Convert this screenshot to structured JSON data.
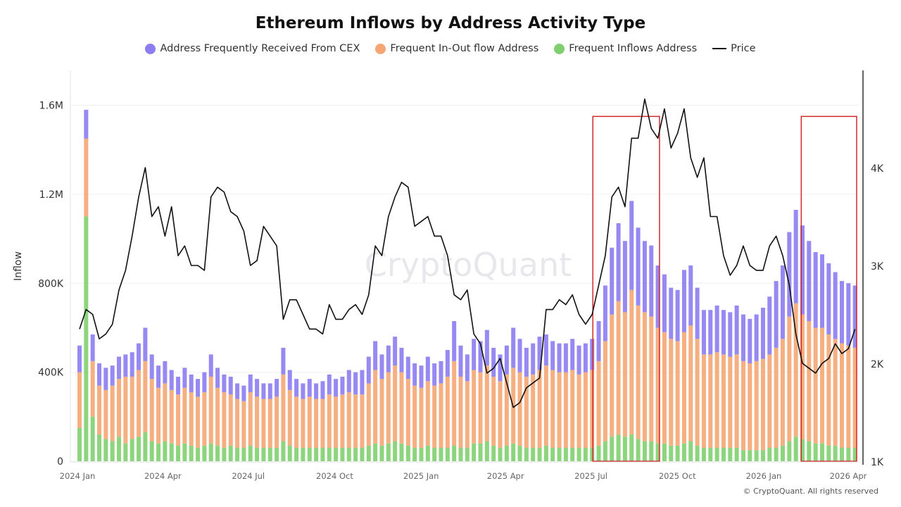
{
  "chart_data": {
    "type": "bar",
    "title": "Ethereum Inflows by Address Activity Type",
    "ylabel": "Inflow",
    "y2label": "",
    "ylim": [
      0,
      1760000
    ],
    "y2lim": [
      1000,
      5000
    ],
    "y_ticks": [
      {
        "v": 0,
        "label": "0"
      },
      {
        "v": 400000,
        "label": "400K"
      },
      {
        "v": 800000,
        "label": "800K"
      },
      {
        "v": 1200000,
        "label": "1.2M"
      },
      {
        "v": 1600000,
        "label": "1.6M"
      }
    ],
    "y2_ticks": [
      {
        "v": 1000,
        "label": "1K"
      },
      {
        "v": 2000,
        "label": "2K"
      },
      {
        "v": 3000,
        "label": "3K"
      },
      {
        "v": 4000,
        "label": "4K"
      }
    ],
    "x_ticks": [
      {
        "v": "2024-01-01",
        "label": "2024 Jan"
      },
      {
        "v": "2024-04-01",
        "label": "2024 Apr"
      },
      {
        "v": "2024-07-01",
        "label": "2024 Jul"
      },
      {
        "v": "2024-10-01",
        "label": "2024 Oct"
      },
      {
        "v": "2025-01-01",
        "label": "2025 Jan"
      },
      {
        "v": "2025-04-01",
        "label": "2025 Apr"
      },
      {
        "v": "2025-07-01",
        "label": "2025 Jul"
      },
      {
        "v": "2025-10-01",
        "label": "2025 Oct"
      },
      {
        "v": "2026-01-01",
        "label": "2026 Jan"
      },
      {
        "v": "2026-04-01",
        "label": "2026 Apr"
      }
    ],
    "stacked": true,
    "grid": "horizontal, faint",
    "legend_placement": "top-center",
    "x": [
      "2024-01-01",
      "2024-01-08",
      "2024-01-15",
      "2024-01-22",
      "2024-01-29",
      "2024-02-05",
      "2024-02-12",
      "2024-02-19",
      "2024-02-26",
      "2024-03-04",
      "2024-03-11",
      "2024-03-18",
      "2024-03-25",
      "2024-04-01",
      "2024-04-08",
      "2024-04-15",
      "2024-04-22",
      "2024-04-29",
      "2024-05-06",
      "2024-05-13",
      "2024-05-20",
      "2024-05-27",
      "2024-06-03",
      "2024-06-10",
      "2024-06-17",
      "2024-06-24",
      "2024-07-01",
      "2024-07-08",
      "2024-07-15",
      "2024-07-22",
      "2024-07-29",
      "2024-08-05",
      "2024-08-12",
      "2024-08-19",
      "2024-08-26",
      "2024-09-02",
      "2024-09-09",
      "2024-09-16",
      "2024-09-23",
      "2024-09-30",
      "2024-10-07",
      "2024-10-14",
      "2024-10-21",
      "2024-10-28",
      "2024-11-04",
      "2024-11-11",
      "2024-11-18",
      "2024-11-25",
      "2024-12-02",
      "2024-12-09",
      "2024-12-16",
      "2024-12-23",
      "2024-12-30",
      "2025-01-06",
      "2025-01-13",
      "2025-01-20",
      "2025-01-27",
      "2025-02-03",
      "2025-02-10",
      "2025-02-17",
      "2025-02-24",
      "2025-03-03",
      "2025-03-10",
      "2025-03-17",
      "2025-03-24",
      "2025-03-31",
      "2025-04-07",
      "2025-04-14",
      "2025-04-21",
      "2025-04-28",
      "2025-05-05",
      "2025-05-12",
      "2025-05-19",
      "2025-05-26",
      "2025-06-02",
      "2025-06-09",
      "2025-06-16",
      "2025-06-23",
      "2025-06-30",
      "2025-07-07",
      "2025-07-14",
      "2025-07-21",
      "2025-07-28",
      "2025-08-04",
      "2025-08-11",
      "2025-08-18",
      "2025-08-25",
      "2025-09-01",
      "2025-09-08",
      "2025-09-15",
      "2025-09-22",
      "2025-09-29",
      "2025-10-06",
      "2025-10-13",
      "2025-10-20",
      "2025-10-27",
      "2025-11-03",
      "2025-11-10",
      "2025-11-17",
      "2025-11-24",
      "2025-12-01",
      "2025-12-08",
      "2025-12-15",
      "2025-12-22",
      "2025-12-29",
      "2026-01-05",
      "2026-01-12",
      "2026-01-19",
      "2026-01-26",
      "2026-02-02",
      "2026-02-09",
      "2026-02-16",
      "2026-02-23",
      "2026-03-02",
      "2026-03-09",
      "2026-03-16",
      "2026-03-23",
      "2026-03-30",
      "2026-04-06"
    ],
    "series": [
      {
        "name": "Frequent Inflows Address",
        "color": "#7fcf6f",
        "axis": "left",
        "values": [
          150000,
          1100000,
          200000,
          120000,
          100000,
          90000,
          110000,
          80000,
          100000,
          110000,
          130000,
          90000,
          80000,
          90000,
          80000,
          70000,
          80000,
          70000,
          60000,
          70000,
          80000,
          70000,
          60000,
          70000,
          60000,
          60000,
          70000,
          60000,
          60000,
          60000,
          60000,
          90000,
          70000,
          60000,
          60000,
          60000,
          60000,
          60000,
          60000,
          60000,
          60000,
          60000,
          60000,
          60000,
          70000,
          80000,
          70000,
          80000,
          90000,
          80000,
          70000,
          60000,
          60000,
          70000,
          60000,
          60000,
          60000,
          70000,
          60000,
          60000,
          80000,
          80000,
          90000,
          70000,
          60000,
          70000,
          80000,
          70000,
          60000,
          60000,
          60000,
          70000,
          60000,
          60000,
          60000,
          60000,
          60000,
          60000,
          60000,
          70000,
          90000,
          110000,
          120000,
          110000,
          120000,
          100000,
          90000,
          90000,
          80000,
          80000,
          70000,
          70000,
          80000,
          90000,
          70000,
          60000,
          60000,
          60000,
          60000,
          60000,
          60000,
          50000,
          50000,
          50000,
          50000,
          60000,
          60000,
          70000,
          90000,
          110000,
          100000,
          90000,
          80000,
          80000,
          70000,
          70000,
          60000,
          60000,
          60000
        ]
      },
      {
        "name": "Frequent In-Out flow Address",
        "color": "#f5a672",
        "axis": "left",
        "values": [
          250000,
          350000,
          250000,
          220000,
          220000,
          250000,
          260000,
          300000,
          280000,
          300000,
          320000,
          280000,
          250000,
          260000,
          240000,
          230000,
          250000,
          240000,
          230000,
          240000,
          300000,
          260000,
          250000,
          230000,
          220000,
          210000,
          240000,
          230000,
          220000,
          220000,
          230000,
          300000,
          250000,
          230000,
          220000,
          230000,
          220000,
          220000,
          240000,
          230000,
          240000,
          250000,
          240000,
          240000,
          280000,
          330000,
          300000,
          320000,
          340000,
          320000,
          300000,
          280000,
          270000,
          290000,
          280000,
          290000,
          320000,
          380000,
          320000,
          300000,
          330000,
          320000,
          340000,
          310000,
          300000,
          320000,
          340000,
          330000,
          320000,
          330000,
          350000,
          360000,
          350000,
          340000,
          340000,
          350000,
          330000,
          340000,
          350000,
          380000,
          450000,
          550000,
          600000,
          560000,
          650000,
          600000,
          580000,
          560000,
          520000,
          500000,
          480000,
          470000,
          500000,
          520000,
          480000,
          420000,
          420000,
          430000,
          420000,
          410000,
          420000,
          400000,
          390000,
          400000,
          410000,
          420000,
          450000,
          480000,
          560000,
          600000,
          560000,
          540000,
          520000,
          520000,
          500000,
          480000,
          470000,
          460000,
          450000
        ]
      },
      {
        "name": "Address Frequently Received From CEX",
        "color": "#8b7cf0",
        "axis": "left",
        "values": [
          120000,
          130000,
          120000,
          100000,
          100000,
          90000,
          100000,
          100000,
          110000,
          120000,
          150000,
          110000,
          100000,
          100000,
          90000,
          80000,
          90000,
          80000,
          80000,
          90000,
          100000,
          90000,
          80000,
          80000,
          70000,
          70000,
          80000,
          80000,
          70000,
          70000,
          80000,
          120000,
          90000,
          80000,
          70000,
          80000,
          70000,
          80000,
          90000,
          80000,
          80000,
          100000,
          100000,
          110000,
          120000,
          130000,
          110000,
          120000,
          130000,
          110000,
          100000,
          100000,
          100000,
          110000,
          100000,
          100000,
          120000,
          180000,
          140000,
          120000,
          140000,
          140000,
          160000,
          130000,
          120000,
          130000,
          180000,
          150000,
          130000,
          140000,
          150000,
          140000,
          130000,
          130000,
          130000,
          140000,
          130000,
          130000,
          140000,
          180000,
          250000,
          300000,
          350000,
          320000,
          400000,
          350000,
          320000,
          320000,
          280000,
          260000,
          230000,
          230000,
          280000,
          270000,
          230000,
          200000,
          200000,
          210000,
          200000,
          200000,
          220000,
          210000,
          200000,
          210000,
          230000,
          260000,
          300000,
          330000,
          380000,
          420000,
          400000,
          360000,
          340000,
          330000,
          320000,
          300000,
          280000,
          280000,
          280000
        ]
      },
      {
        "name": "Price",
        "color": "#111111",
        "axis": "right",
        "type": "line",
        "values": [
          2350,
          2550,
          2500,
          2250,
          2300,
          2400,
          2750,
          2950,
          3300,
          3700,
          4000,
          3500,
          3600,
          3300,
          3600,
          3100,
          3200,
          3000,
          3000,
          2950,
          3700,
          3800,
          3750,
          3550,
          3500,
          3350,
          3000,
          3050,
          3400,
          3300,
          3200,
          2450,
          2650,
          2650,
          2500,
          2350,
          2350,
          2300,
          2600,
          2450,
          2450,
          2550,
          2600,
          2500,
          2700,
          3200,
          3100,
          3500,
          3700,
          3850,
          3800,
          3400,
          3450,
          3500,
          3300,
          3300,
          3100,
          2700,
          2650,
          2750,
          2300,
          2200,
          1900,
          1950,
          2050,
          1800,
          1550,
          1600,
          1750,
          1800,
          1850,
          2550,
          2550,
          2650,
          2600,
          2700,
          2500,
          2400,
          2500,
          2800,
          3100,
          3700,
          3800,
          3600,
          4300,
          4300,
          4700,
          4400,
          4300,
          4600,
          4200,
          4350,
          4600,
          4100,
          3900,
          4100,
          3500,
          3500,
          3100,
          2900,
          3000,
          3200,
          3000,
          2950,
          2950,
          3200,
          3300,
          3100,
          2800,
          2300,
          2000,
          1950,
          1900,
          2000,
          2050,
          2200,
          2100,
          2150,
          2350
        ]
      }
    ],
    "annotations": [
      {
        "type": "rectangle",
        "color": "#d42a2a",
        "x": [
          "2025-07-03",
          "2025-09-12"
        ],
        "y": [
          0,
          1550000
        ]
      },
      {
        "type": "rectangle",
        "color": "#d42a2a",
        "x": [
          "2026-02-10",
          "2026-04-10"
        ],
        "y": [
          0,
          1550000
        ]
      }
    ],
    "watermark": "CryptoQuant"
  },
  "legend": [
    {
      "label": "Address Frequently Received From CEX",
      "color": "#8b7cf0",
      "marker": "circle"
    },
    {
      "label": "Frequent In-Out flow Address",
      "color": "#f5a672",
      "marker": "circle"
    },
    {
      "label": "Frequent Inflows Address",
      "color": "#7fcf6f",
      "marker": "circle"
    },
    {
      "label": "Price",
      "color": "#111111",
      "marker": "line"
    }
  ],
  "footer": {
    "copyright": "© CryptoQuant. All rights reserved"
  }
}
